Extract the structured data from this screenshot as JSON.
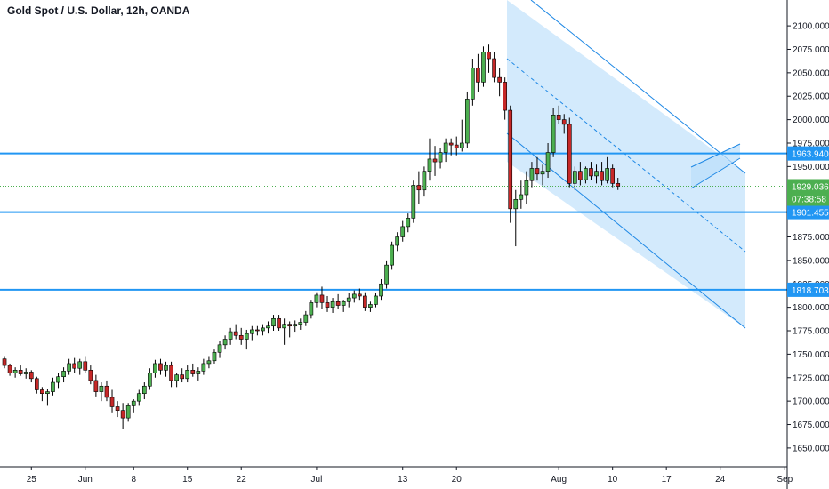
{
  "chart_data": {
    "type": "candlestick",
    "title": "Gold Spot / U.S. Dollar, 12h, OANDA",
    "ylim": [
      1630,
      2120
    ],
    "y_ticks": [
      1650,
      1675,
      1700,
      1725,
      1750,
      1775,
      1800,
      1825,
      1850,
      1875,
      1900,
      1925,
      1950,
      1975,
      2000,
      2025,
      2050,
      2075,
      2100
    ],
    "y_tick_labels": [
      "1650.000",
      "1675.000",
      "1700.000",
      "1725.000",
      "1750.000",
      "1775.000",
      "1800.000",
      "1825.000",
      "1850.000",
      "1875.000",
      "1900.000",
      "1925.000",
      "1950.000",
      "1975.000",
      "2000.000",
      "2025.000",
      "2050.000",
      "2075.000",
      "2100.000"
    ],
    "x_ticks": [
      {
        "label": "25",
        "bar": 5
      },
      {
        "label": "Jun",
        "bar": 15
      },
      {
        "label": "8",
        "bar": 24
      },
      {
        "label": "15",
        "bar": 34
      },
      {
        "label": "22",
        "bar": 44
      },
      {
        "label": "Jul",
        "bar": 58
      },
      {
        "label": "13",
        "bar": 74
      },
      {
        "label": "20",
        "bar": 84
      },
      {
        "label": "Aug",
        "bar": 103
      },
      {
        "label": "10",
        "bar": 113
      },
      {
        "label": "17",
        "bar": 123
      },
      {
        "label": "24",
        "bar": 133
      },
      {
        "label": "Sep",
        "bar": 145
      }
    ],
    "candles": [
      [
        1745,
        1748,
        1735,
        1738
      ],
      [
        1738,
        1740,
        1727,
        1730
      ],
      [
        1730,
        1736,
        1725,
        1733
      ],
      [
        1733,
        1738,
        1727,
        1729
      ],
      [
        1729,
        1735,
        1724,
        1731
      ],
      [
        1731,
        1733,
        1720,
        1724
      ],
      [
        1724,
        1726,
        1708,
        1712
      ],
      [
        1712,
        1715,
        1700,
        1708
      ],
      [
        1708,
        1713,
        1695,
        1710
      ],
      [
        1710,
        1725,
        1706,
        1720
      ],
      [
        1720,
        1730,
        1714,
        1726
      ],
      [
        1726,
        1736,
        1720,
        1732
      ],
      [
        1732,
        1745,
        1728,
        1740
      ],
      [
        1740,
        1746,
        1730,
        1735
      ],
      [
        1735,
        1745,
        1728,
        1742
      ],
      [
        1742,
        1748,
        1730,
        1733
      ],
      [
        1733,
        1738,
        1718,
        1722
      ],
      [
        1722,
        1728,
        1705,
        1710
      ],
      [
        1710,
        1720,
        1700,
        1716
      ],
      [
        1716,
        1722,
        1700,
        1704
      ],
      [
        1704,
        1712,
        1688,
        1694
      ],
      [
        1694,
        1700,
        1683,
        1690
      ],
      [
        1690,
        1698,
        1670,
        1682
      ],
      [
        1682,
        1698,
        1678,
        1695
      ],
      [
        1695,
        1702,
        1688,
        1700
      ],
      [
        1700,
        1712,
        1695,
        1708
      ],
      [
        1708,
        1720,
        1702,
        1716
      ],
      [
        1716,
        1735,
        1712,
        1730
      ],
      [
        1730,
        1744,
        1725,
        1740
      ],
      [
        1740,
        1745,
        1728,
        1733
      ],
      [
        1733,
        1742,
        1726,
        1738
      ],
      [
        1738,
        1742,
        1715,
        1722
      ],
      [
        1722,
        1730,
        1715,
        1728
      ],
      [
        1728,
        1735,
        1720,
        1724
      ],
      [
        1724,
        1738,
        1720,
        1733
      ],
      [
        1733,
        1740,
        1726,
        1729
      ],
      [
        1729,
        1736,
        1722,
        1732
      ],
      [
        1732,
        1745,
        1728,
        1740
      ],
      [
        1740,
        1748,
        1735,
        1743
      ],
      [
        1743,
        1755,
        1740,
        1752
      ],
      [
        1752,
        1764,
        1746,
        1760
      ],
      [
        1760,
        1770,
        1755,
        1766
      ],
      [
        1766,
        1778,
        1760,
        1774
      ],
      [
        1774,
        1782,
        1766,
        1770
      ],
      [
        1770,
        1778,
        1760,
        1766
      ],
      [
        1766,
        1776,
        1755,
        1772
      ],
      [
        1772,
        1780,
        1765,
        1776
      ],
      [
        1776,
        1780,
        1770,
        1775
      ],
      [
        1775,
        1782,
        1770,
        1778
      ],
      [
        1778,
        1785,
        1772,
        1780
      ],
      [
        1780,
        1792,
        1775,
        1788
      ],
      [
        1788,
        1792,
        1775,
        1778
      ],
      [
        1778,
        1788,
        1760,
        1782
      ],
      [
        1782,
        1785,
        1768,
        1780
      ],
      [
        1780,
        1786,
        1774,
        1782
      ],
      [
        1782,
        1788,
        1776,
        1784
      ],
      [
        1784,
        1796,
        1780,
        1792
      ],
      [
        1792,
        1808,
        1788,
        1805
      ],
      [
        1805,
        1816,
        1800,
        1813
      ],
      [
        1813,
        1822,
        1798,
        1805
      ],
      [
        1805,
        1812,
        1795,
        1800
      ],
      [
        1800,
        1810,
        1794,
        1806
      ],
      [
        1806,
        1814,
        1798,
        1802
      ],
      [
        1802,
        1808,
        1795,
        1806
      ],
      [
        1806,
        1815,
        1800,
        1810
      ],
      [
        1810,
        1818,
        1805,
        1814
      ],
      [
        1814,
        1820,
        1808,
        1812
      ],
      [
        1812,
        1816,
        1796,
        1800
      ],
      [
        1800,
        1806,
        1795,
        1803
      ],
      [
        1803,
        1815,
        1800,
        1812
      ],
      [
        1812,
        1830,
        1808,
        1825
      ],
      [
        1825,
        1850,
        1820,
        1845
      ],
      [
        1845,
        1870,
        1840,
        1866
      ],
      [
        1866,
        1880,
        1860,
        1875
      ],
      [
        1875,
        1892,
        1870,
        1886
      ],
      [
        1886,
        1900,
        1880,
        1895
      ],
      [
        1895,
        1935,
        1890,
        1930
      ],
      [
        1930,
        1945,
        1910,
        1925
      ],
      [
        1925,
        1950,
        1918,
        1945
      ],
      [
        1945,
        1980,
        1935,
        1958
      ],
      [
        1958,
        1972,
        1940,
        1955
      ],
      [
        1955,
        1970,
        1948,
        1965
      ],
      [
        1965,
        1980,
        1955,
        1975
      ],
      [
        1975,
        1980,
        1962,
        1973
      ],
      [
        1973,
        1982,
        1962,
        1970
      ],
      [
        1970,
        2000,
        1966,
        1975
      ],
      [
        1975,
        2030,
        1970,
        2022
      ],
      [
        2022,
        2065,
        2015,
        2055
      ],
      [
        2055,
        2070,
        2030,
        2040
      ],
      [
        2040,
        2078,
        2035,
        2072
      ],
      [
        2072,
        2080,
        2050,
        2065
      ],
      [
        2065,
        2072,
        2040,
        2045
      ],
      [
        2045,
        2055,
        2025,
        2040
      ],
      [
        2040,
        2045,
        2000,
        2010
      ],
      [
        2010,
        2015,
        1890,
        1905
      ],
      [
        1905,
        1925,
        1865,
        1915
      ],
      [
        1915,
        1935,
        1905,
        1920
      ],
      [
        1920,
        1945,
        1910,
        1935
      ],
      [
        1935,
        1955,
        1928,
        1948
      ],
      [
        1948,
        1960,
        1935,
        1942
      ],
      [
        1942,
        1952,
        1930,
        1945
      ],
      [
        1945,
        1975,
        1938,
        1965
      ],
      [
        1965,
        2012,
        1960,
        2005
      ],
      [
        2005,
        2015,
        1995,
        2000
      ],
      [
        2000,
        2006,
        1985,
        1995
      ],
      [
        1995,
        2002,
        1928,
        1932
      ],
      [
        1932,
        1950,
        1925,
        1945
      ],
      [
        1945,
        1955,
        1930,
        1936
      ],
      [
        1936,
        1950,
        1932,
        1948
      ],
      [
        1948,
        1955,
        1936,
        1940
      ],
      [
        1940,
        1952,
        1932,
        1945
      ],
      [
        1945,
        1955,
        1930,
        1935
      ],
      [
        1935,
        1960,
        1932,
        1948
      ],
      [
        1948,
        1952,
        1928,
        1932
      ],
      [
        1932,
        1938,
        1925,
        1929
      ]
    ],
    "levels": [
      {
        "label": "1963.940",
        "value": 1963.94
      },
      {
        "label": "1901.455",
        "value": 1901.455
      },
      {
        "label": "1818.703",
        "value": 1818.703
      }
    ],
    "last_price": {
      "label": "1929.036",
      "value": 1929.036,
      "countdown": "07:38:58"
    },
    "colors": {
      "up": "#4CAF50",
      "down": "#C62828",
      "level": "#2196F3",
      "channel_fill": "#BBDEFB",
      "channel_line": "#1E88E5",
      "price_line": "#4CAF50",
      "axis_line": "#131722",
      "text": "#131722"
    }
  }
}
